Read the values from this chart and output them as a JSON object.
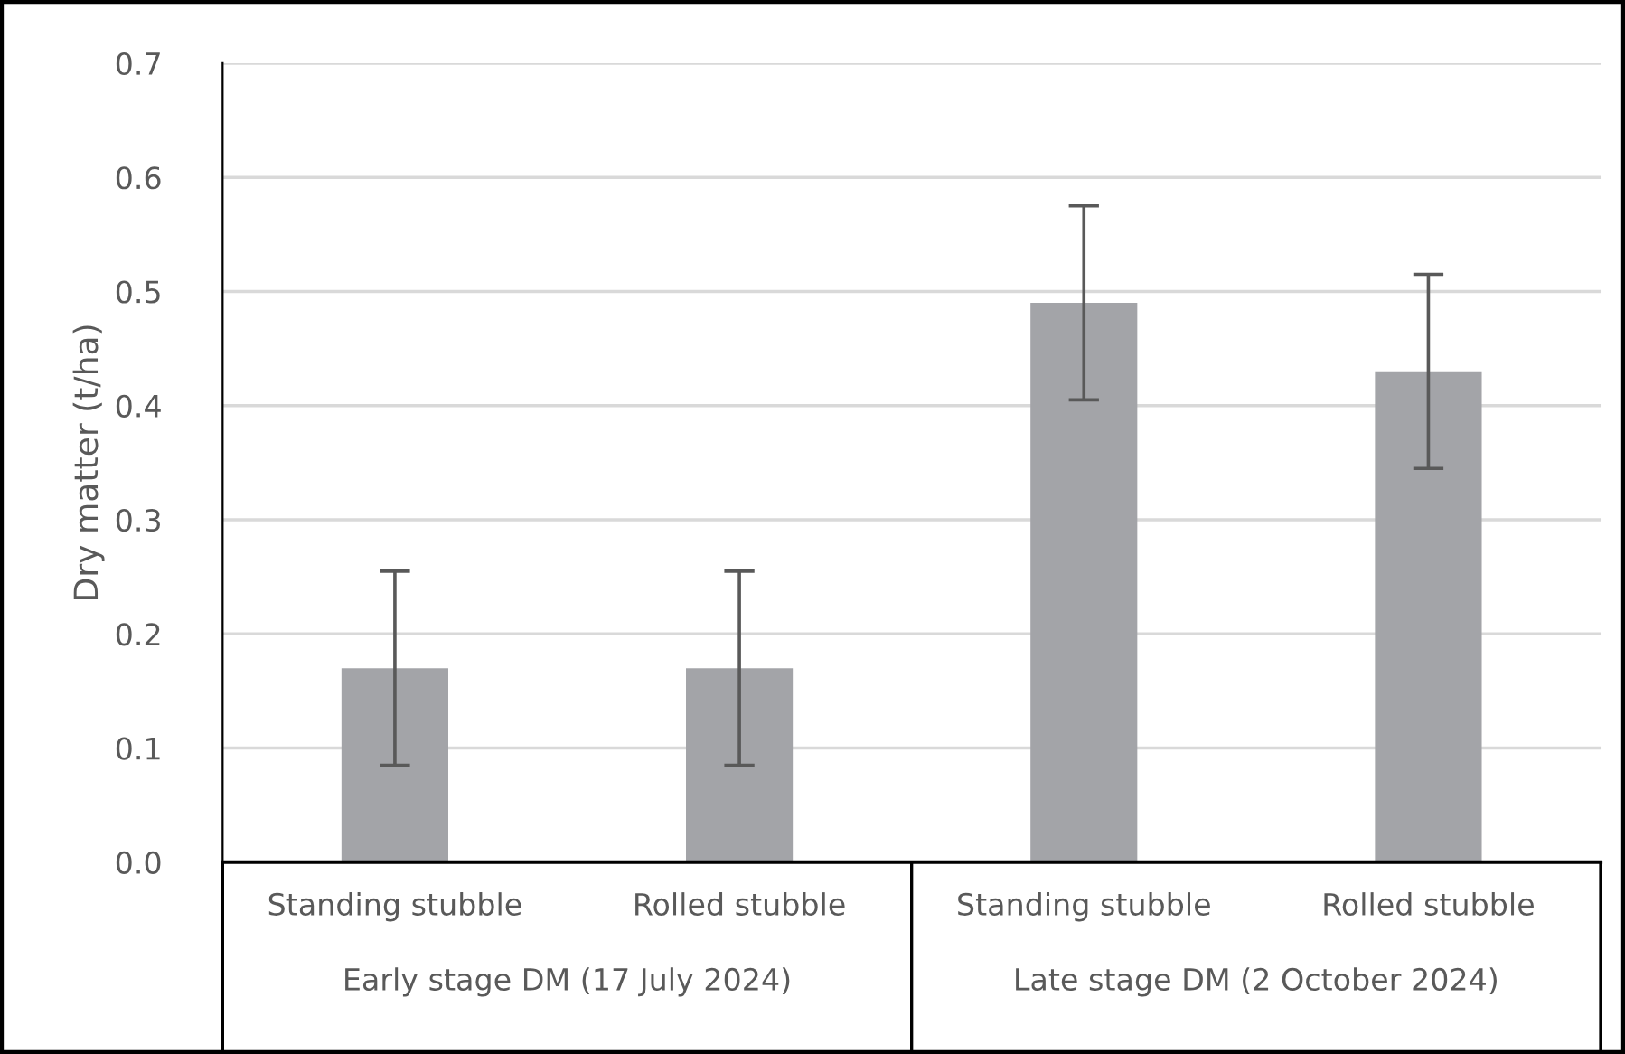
{
  "chart_data": {
    "type": "bar",
    "ylabel": "Dry matter (t/ha)",
    "categories": [
      "Standing stubble",
      "Rolled stubble",
      "Standing stubble",
      "Rolled stubble"
    ],
    "values": [
      0.17,
      0.17,
      0.49,
      0.43
    ],
    "errors": [
      0.085,
      0.085,
      0.085,
      0.085
    ],
    "color": "#a3a4a8",
    "annotations": [
      "Early stage DM (17 July 2024)",
      "Late stage DM (2 October 2024)"
    ],
    "ylim": [
      0,
      0.7
    ],
    "yticks": [
      {
        "value": 0,
        "label": "0.0"
      },
      0.1,
      0.2,
      0.3,
      0.4,
      0.5,
      0.6,
      0.7
    ],
    "grid": "y"
  }
}
